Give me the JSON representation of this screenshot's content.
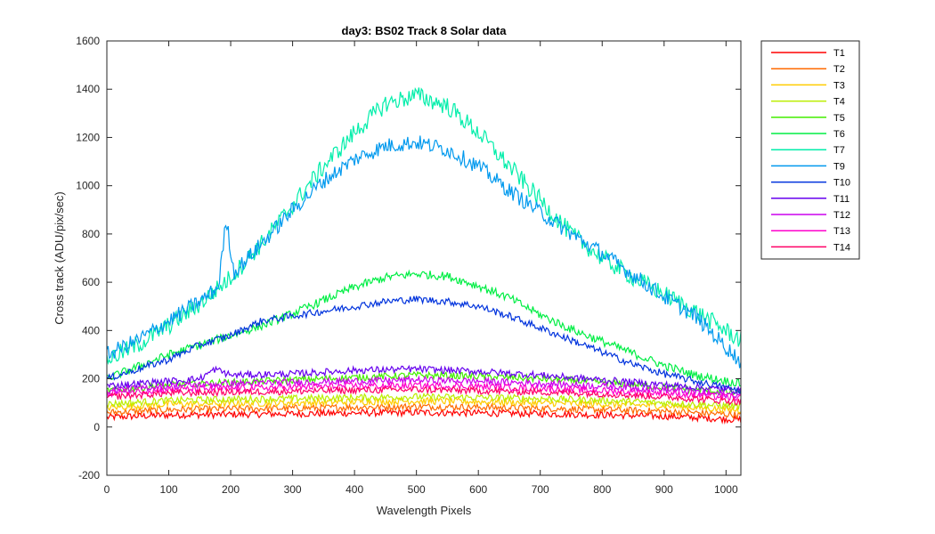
{
  "chart_data": {
    "type": "line",
    "title": "day3: BS02  Track 8 Solar data",
    "xlabel": "Wavelength Pixels",
    "ylabel": "Cross track (ADU/pix/sec)",
    "xlim": [
      0,
      1024
    ],
    "ylim": [
      -200,
      1600
    ],
    "xticks": [
      0,
      100,
      200,
      300,
      400,
      500,
      600,
      700,
      800,
      900,
      1000
    ],
    "yticks": [
      -200,
      0,
      200,
      400,
      600,
      800,
      1000,
      1200,
      1400,
      1600
    ],
    "legend_position": "outside-top-right",
    "grid": false,
    "series": [
      {
        "name": "T1",
        "color": "#ff0000",
        "x": [
          0,
          100,
          200,
          300,
          400,
          500,
          600,
          700,
          800,
          900,
          1024
        ],
        "y": [
          40,
          50,
          52,
          55,
          58,
          60,
          58,
          55,
          50,
          45,
          30
        ]
      },
      {
        "name": "T2",
        "color": "#ff6a00",
        "x": [
          0,
          100,
          200,
          300,
          400,
          500,
          600,
          700,
          800,
          900,
          1024
        ],
        "y": [
          60,
          72,
          75,
          78,
          82,
          85,
          82,
          78,
          72,
          65,
          50
        ]
      },
      {
        "name": "T3",
        "color": "#ffcc00",
        "x": [
          0,
          100,
          200,
          300,
          400,
          500,
          600,
          700,
          800,
          900,
          1024
        ],
        "y": [
          80,
          95,
          98,
          100,
          105,
          108,
          105,
          100,
          95,
          88,
          70
        ]
      },
      {
        "name": "T4",
        "color": "#bbee00",
        "x": [
          0,
          100,
          200,
          300,
          400,
          500,
          600,
          700,
          800,
          900,
          1024
        ],
        "y": [
          95,
          110,
          115,
          118,
          122,
          125,
          122,
          118,
          110,
          100,
          85
        ]
      },
      {
        "name": "T5",
        "color": "#44ee00",
        "x": [
          0,
          100,
          200,
          300,
          400,
          500,
          600,
          700,
          800,
          900,
          1024
        ],
        "y": [
          150,
          175,
          185,
          195,
          205,
          215,
          210,
          200,
          185,
          165,
          140
        ]
      },
      {
        "name": "T6",
        "color": "#00ee44",
        "x": [
          0,
          100,
          200,
          250,
          300,
          350,
          400,
          450,
          500,
          550,
          600,
          650,
          700,
          750,
          800,
          850,
          900,
          950,
          1024
        ],
        "y": [
          200,
          300,
          380,
          420,
          470,
          525,
          580,
          620,
          635,
          625,
          585,
          535,
          465,
          405,
          355,
          305,
          255,
          215,
          180
        ]
      },
      {
        "name": "T7",
        "color": "#00eeaa",
        "x": [
          0,
          50,
          100,
          150,
          200,
          250,
          300,
          350,
          400,
          450,
          500,
          550,
          600,
          650,
          700,
          750,
          800,
          850,
          900,
          950,
          1024
        ],
        "y": [
          280,
          340,
          420,
          510,
          620,
          760,
          920,
          1080,
          1220,
          1340,
          1375,
          1330,
          1220,
          1080,
          940,
          800,
          700,
          620,
          550,
          480,
          360
        ]
      },
      {
        "name": "T9",
        "color": "#0099ee",
        "x": [
          0,
          50,
          100,
          150,
          180,
          193,
          205,
          250,
          300,
          350,
          400,
          450,
          500,
          550,
          600,
          650,
          700,
          750,
          800,
          850,
          900,
          950,
          1024
        ],
        "y": [
          300,
          360,
          440,
          520,
          580,
          860,
          640,
          760,
          900,
          1020,
          1110,
          1165,
          1180,
          1150,
          1080,
          980,
          890,
          800,
          720,
          630,
          540,
          460,
          270
        ]
      },
      {
        "name": "T10",
        "color": "#0033dd",
        "x": [
          0,
          100,
          150,
          200,
          250,
          300,
          350,
          400,
          450,
          500,
          550,
          600,
          650,
          700,
          750,
          800,
          850,
          900,
          950,
          1024
        ],
        "y": [
          200,
          280,
          340,
          380,
          440,
          460,
          480,
          500,
          520,
          530,
          520,
          500,
          460,
          410,
          360,
          310,
          260,
          220,
          190,
          150
        ]
      },
      {
        "name": "T11",
        "color": "#6600ee",
        "x": [
          0,
          100,
          150,
          175,
          200,
          300,
          400,
          500,
          600,
          700,
          800,
          900,
          1024
        ],
        "y": [
          170,
          190,
          200,
          240,
          215,
          220,
          235,
          240,
          230,
          215,
          195,
          175,
          150
        ]
      },
      {
        "name": "T12",
        "color": "#cc00ee",
        "x": [
          0,
          100,
          200,
          300,
          400,
          500,
          600,
          700,
          800,
          900,
          1024
        ],
        "y": [
          150,
          170,
          180,
          185,
          190,
          195,
          190,
          180,
          170,
          155,
          130
        ]
      },
      {
        "name": "T13",
        "color": "#ff00cc",
        "x": [
          0,
          100,
          200,
          300,
          400,
          500,
          600,
          700,
          800,
          900,
          1024
        ],
        "y": [
          140,
          155,
          160,
          165,
          170,
          172,
          168,
          160,
          150,
          140,
          120
        ]
      },
      {
        "name": "T14",
        "color": "#ff0066",
        "x": [
          0,
          100,
          200,
          300,
          400,
          500,
          600,
          700,
          800,
          900,
          1024
        ],
        "y": [
          125,
          140,
          145,
          148,
          152,
          155,
          150,
          145,
          138,
          125,
          105
        ]
      }
    ]
  }
}
